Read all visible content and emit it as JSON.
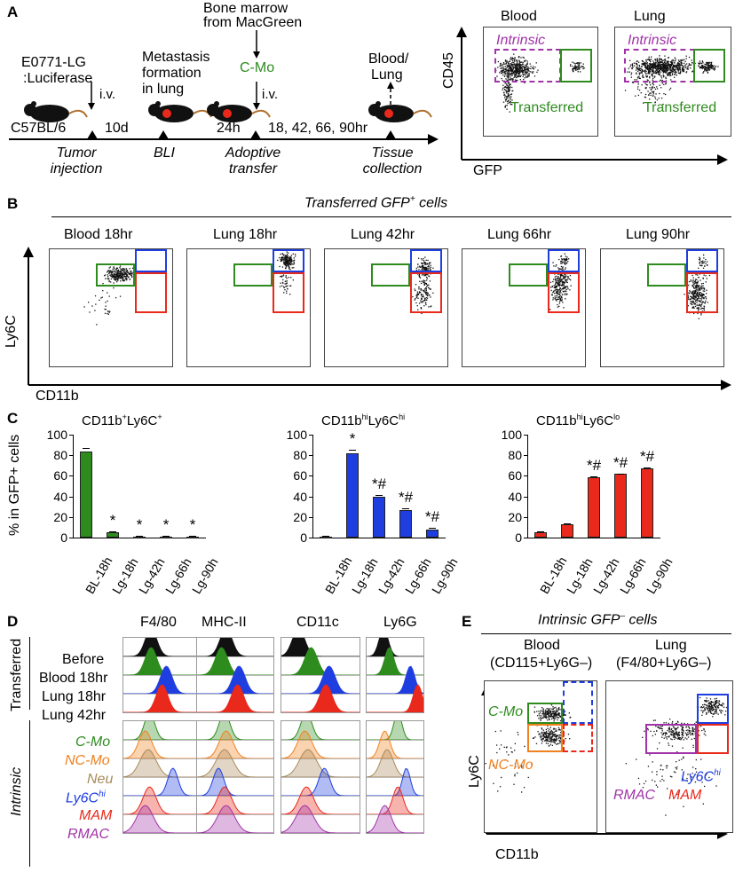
{
  "panels": {
    "A": "A",
    "B": "B",
    "C": "C",
    "D": "D",
    "E": "E"
  },
  "colors": {
    "green": "#2e8b1e",
    "blue": "#1f3ee0",
    "red": "#e8291b",
    "purple": "#a033a8",
    "orange": "#f08020",
    "tan": "#a88a5a"
  },
  "panelA": {
    "cell_line": "E0771-LG",
    "luciferase": ":Luciferase",
    "iv1": "i.v.",
    "mouse": "C57BL/6",
    "interval1": "10d",
    "metastasis": [
      "Metastasis",
      "formation",
      "in lung"
    ],
    "bm": [
      "Bone marrow",
      "from MacGreen"
    ],
    "cmo": "C-Mo",
    "iv2": "i.v.",
    "interval2": "24h",
    "interval3": "18, 42, 66, 90hr",
    "collect_target": [
      "Blood/",
      "Lung"
    ],
    "steps": [
      {
        "line1": "Tumor",
        "line2": "injection"
      },
      {
        "line1": "BLI",
        "line2": ""
      },
      {
        "line1": "Adoptive",
        "line2": "transfer"
      },
      {
        "line1": "Tissue",
        "line2": "collection"
      }
    ],
    "flow_titles": [
      "Blood",
      "Lung"
    ],
    "flow_yaxis": "CD45",
    "flow_xaxis": "GFP",
    "gate_intrinsic": "Intrinsic",
    "gate_transferred": "Transferred"
  },
  "panelB": {
    "header": "Transferred GFP",
    "header_sup": "+",
    "header_tail": " cells",
    "plots": [
      "Blood 18hr",
      "Lung 18hr",
      "Lung 42hr",
      "Lung 66hr",
      "Lung 90hr"
    ],
    "yaxis": "Ly6C",
    "xaxis": "CD11b"
  },
  "panelC": {
    "ylabel": "% in GFP+ cells",
    "ytick_labels": [
      "100",
      "80",
      "60",
      "40",
      "20",
      "0"
    ],
    "categories": [
      "BL-18h",
      "Lg-18h",
      "Lg-42h",
      "Lg-66h",
      "Lg-90h"
    ]
  },
  "chart_data": [
    {
      "type": "bar",
      "title": "CD11b+Ly6C+",
      "color": "#2e8b1e",
      "categories": [
        "BL-18h",
        "Lg-18h",
        "Lg-42h",
        "Lg-66h",
        "Lg-90h"
      ],
      "values": [
        84,
        5,
        1,
        1,
        1
      ],
      "errors": [
        3,
        1,
        0.5,
        0.5,
        0.5
      ],
      "marks": [
        "",
        "*",
        "*",
        "*",
        "*"
      ],
      "ylabel": "% in GFP+ cells",
      "ylim": [
        0,
        100
      ]
    },
    {
      "type": "bar",
      "title": "CD11bhiLy6Chi",
      "color": "#1f3ee0",
      "categories": [
        "BL-18h",
        "Lg-18h",
        "Lg-42h",
        "Lg-66h",
        "Lg-90h"
      ],
      "values": [
        1,
        82,
        40,
        27,
        8
      ],
      "errors": [
        0.5,
        3,
        1,
        1.5,
        1.5
      ],
      "marks": [
        "",
        "*",
        "*#",
        "*#",
        "*#"
      ],
      "ylabel": "",
      "ylim": [
        0,
        100
      ]
    },
    {
      "type": "bar",
      "title": "CD11bhiLy6Clo",
      "color": "#e8291b",
      "categories": [
        "BL-18h",
        "Lg-18h",
        "Lg-42h",
        "Lg-66h",
        "Lg-90h"
      ],
      "values": [
        5,
        13,
        59,
        62,
        67
      ],
      "errors": [
        1,
        1,
        0.5,
        0.5,
        1
      ],
      "marks": [
        "",
        "",
        "*#",
        "*#",
        "*#"
      ],
      "ylabel": "",
      "ylim": [
        0,
        100
      ]
    }
  ],
  "panelD": {
    "columns": [
      "F4/80",
      "MHC-II",
      "CD11c",
      "Ly6G"
    ],
    "transferred_label": "Transferred",
    "intrinsic_label": "Intrinsic",
    "transferred_rows": [
      "Before",
      "Blood 18hr",
      "Lung 18hr",
      "Lung 42hr"
    ],
    "intrinsic_rows": [
      "C-Mo",
      "NC-Mo",
      "Neu",
      "Ly6C",
      "MAM",
      "RMAC"
    ],
    "ly6c_sup": "hi"
  },
  "panelE": {
    "header": "Intrinsic GFP",
    "header_sup": "–",
    "header_tail": " cells",
    "blood_title": "Blood",
    "blood_sub": "(CD115+Ly6G–)",
    "lung_title": "Lung",
    "lung_sub": "(F4/80+Ly6G–)",
    "yaxis": "Ly6C",
    "xaxis": "CD11b",
    "labels": {
      "cmo": "C-Mo",
      "ncmo": "NC-Mo",
      "ly6c": "Ly6C",
      "ly6c_sup": "hi",
      "rmac": "RMAC",
      "mam": "MAM"
    }
  }
}
